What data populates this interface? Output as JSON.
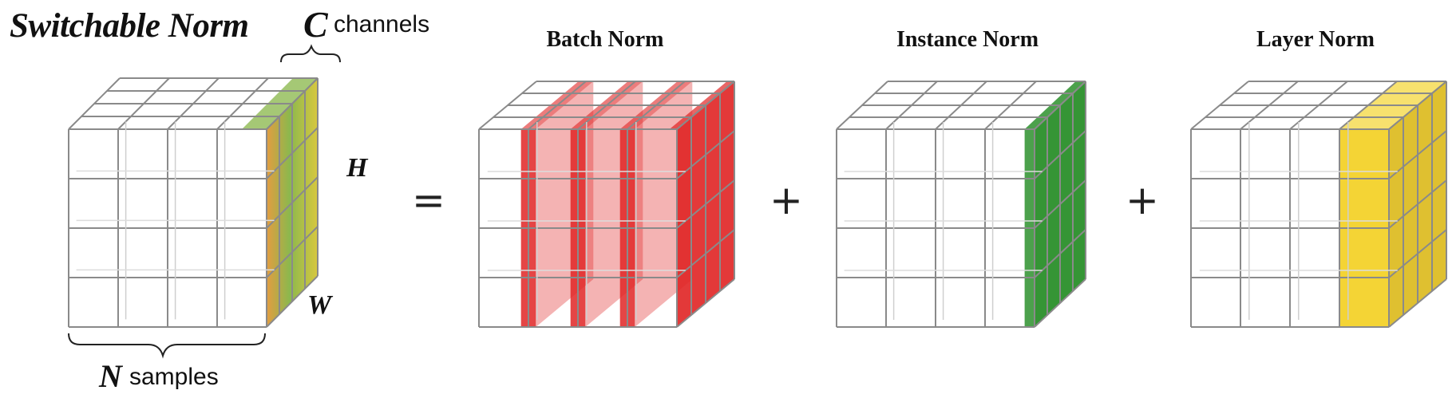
{
  "title": "Switchable Norm",
  "labels": {
    "c_symbol": "C",
    "c_text": "channels",
    "h_symbol": "H",
    "w_symbol": "W",
    "n_symbol": "N",
    "n_text": "samples"
  },
  "operators": {
    "equals": "=",
    "plus": "+"
  },
  "panels": [
    {
      "id": "switchable",
      "title": "",
      "highlight": "mixed"
    },
    {
      "id": "batch",
      "title": "Batch Norm",
      "highlight": "#e02424"
    },
    {
      "id": "instance",
      "title": "Instance Norm",
      "highlight": "#1f8a1f"
    },
    {
      "id": "layer",
      "title": "Layer Norm",
      "highlight": "#f2cc12"
    }
  ],
  "colors": {
    "grid": "#8a8a8a",
    "batch": "#e02424",
    "instance": "#1f8a1f",
    "layer": "#f2cc12",
    "mix_orange": "#e0922c",
    "mix_green": "#7fb03a",
    "mix_yellow": "#d4c22a"
  }
}
